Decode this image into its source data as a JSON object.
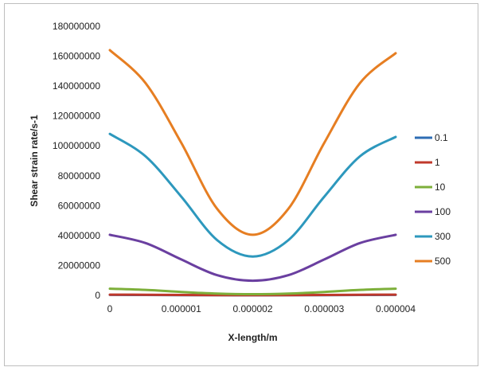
{
  "chart_data": {
    "type": "line",
    "title": "",
    "xlabel": "X-length/m",
    "ylabel": "Shear strain rate/s-1",
    "x_ticks": [
      "0",
      "0.000001",
      "0.000002",
      "0.000003",
      "0.000004"
    ],
    "y_ticks": [
      "0",
      "20000000",
      "40000000",
      "60000000",
      "80000000",
      "100000000",
      "120000000",
      "140000000",
      "160000000",
      "180000000"
    ],
    "xlim": [
      0,
      4e-06
    ],
    "ylim": [
      0,
      180000000
    ],
    "grid": false,
    "legend_position": "right",
    "x": [
      0,
      5e-07,
      1e-06,
      1.5e-06,
      2e-06,
      2.5e-06,
      3e-06,
      3.5e-06,
      4e-06
    ],
    "series": [
      {
        "name": "0.1",
        "color": "#2E6DB4",
        "values": [
          320000,
          250000,
          150000,
          80000,
          60000,
          80000,
          150000,
          250000,
          320000
        ]
      },
      {
        "name": "1",
        "color": "#C0392B",
        "values": [
          500000,
          400000,
          250000,
          120000,
          90000,
          120000,
          250000,
          400000,
          500000
        ]
      },
      {
        "name": "10",
        "color": "#7DAF3A",
        "values": [
          4500000,
          3700000,
          2300000,
          1200000,
          800000,
          1200000,
          2300000,
          3700000,
          4500000
        ]
      },
      {
        "name": "100",
        "color": "#6A3FA0",
        "values": [
          40500000,
          35000000,
          24000000,
          13500000,
          9800000,
          13500000,
          24000000,
          35000000,
          40500000
        ]
      },
      {
        "name": "300",
        "color": "#2D98BD",
        "values": [
          108000000,
          93000000,
          66000000,
          37000000,
          26000000,
          37000000,
          66000000,
          93000000,
          106000000
        ]
      },
      {
        "name": "500",
        "color": "#E67E22",
        "values": [
          164000000,
          142000000,
          102000000,
          58000000,
          40500000,
          58000000,
          102000000,
          142000000,
          162000000
        ]
      }
    ]
  }
}
